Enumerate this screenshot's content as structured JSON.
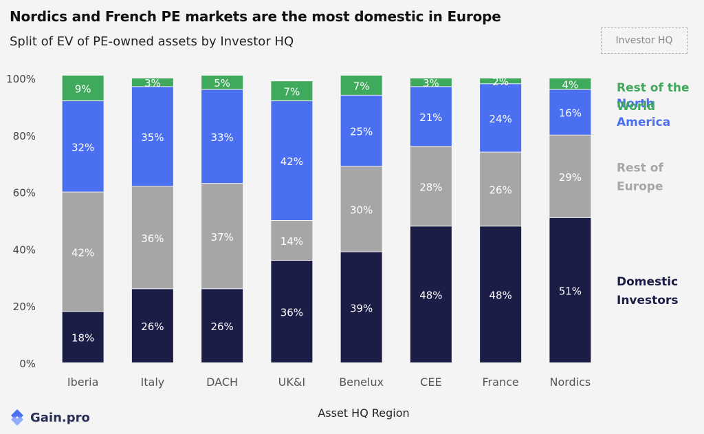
{
  "title": "Nordics and French PE markets are the most domestic in Europe",
  "subtitle": "Split of EV of PE-owned assets by Investor HQ",
  "legend_box_label": "Investor HQ",
  "brand": "Gain.pro",
  "colors": {
    "domestic": "#1c1d47",
    "rest_of_europe": "#a6a6a6",
    "north_america": "#4a6ff0",
    "rest_of_world": "#3fa95c"
  },
  "chart_data": {
    "type": "bar",
    "stacked": true,
    "categories": [
      "Iberia",
      "Italy",
      "DACH",
      "UK&I",
      "Benelux",
      "CEE",
      "France",
      "Nordics"
    ],
    "series": [
      {
        "name": "Domestic Investors",
        "legend_lines": [
          "Domestic",
          "Investors"
        ],
        "key": "domestic",
        "values": [
          18,
          26,
          26,
          36,
          39,
          48,
          48,
          51
        ]
      },
      {
        "name": "Rest of Europe",
        "legend_lines": [
          "Rest of",
          "Europe"
        ],
        "key": "rest_of_europe",
        "values": [
          42,
          36,
          37,
          14,
          30,
          28,
          26,
          29
        ]
      },
      {
        "name": "North America",
        "legend_lines": [
          "North",
          "America"
        ],
        "key": "north_america",
        "values": [
          32,
          35,
          33,
          42,
          25,
          21,
          24,
          16
        ]
      },
      {
        "name": "Rest of the World",
        "legend_lines": [
          "Rest of the",
          "World"
        ],
        "key": "rest_of_world",
        "values": [
          9,
          3,
          5,
          7,
          7,
          3,
          2,
          4
        ]
      }
    ],
    "xlabel": "Asset HQ Region",
    "ylabel": "",
    "ylim": [
      0,
      100
    ],
    "yticks": [
      "0%",
      "20%",
      "40%",
      "60%",
      "80%",
      "100%"
    ],
    "grid": false,
    "legend_position": "right"
  }
}
